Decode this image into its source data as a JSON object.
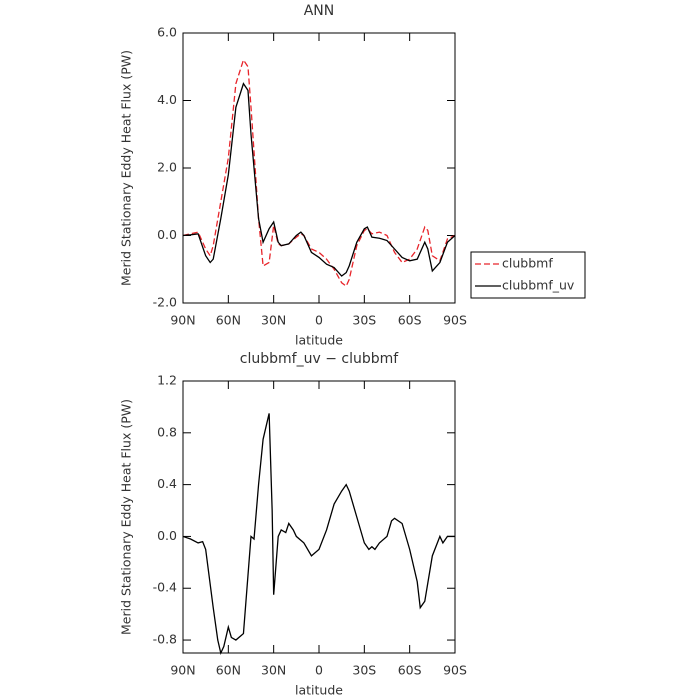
{
  "chart_data": [
    {
      "type": "line",
      "title": "ANN",
      "ylabel": "Merid Stationary Eddy Heat Flux (PW)",
      "xlabel": "latitude",
      "x": [
        90,
        85,
        80,
        75,
        72,
        70,
        65,
        60,
        55,
        50,
        47,
        45,
        40,
        37,
        33,
        30,
        27,
        25,
        20,
        15,
        12,
        10,
        5,
        0,
        -5,
        -10,
        -15,
        -18,
        -20,
        -25,
        -30,
        -32,
        -35,
        -40,
        -45,
        -50,
        -55,
        -60,
        -65,
        -70,
        -72,
        -75,
        -80,
        -85,
        -90
      ],
      "series": [
        {
          "name": "clubbmf",
          "color": "#e8242a",
          "dashed": true,
          "values": [
            0,
            0.05,
            0.1,
            -0.4,
            -0.6,
            -0.3,
            1.0,
            2.3,
            4.5,
            5.2,
            5.0,
            3.8,
            0.5,
            -0.9,
            -0.8,
            0.3,
            -0.25,
            -0.3,
            -0.25,
            -0.05,
            0.05,
            0.0,
            -0.4,
            -0.5,
            -0.7,
            -1.0,
            -1.4,
            -1.5,
            -1.3,
            -0.3,
            0.15,
            0.2,
            0.05,
            0.1,
            0.0,
            -0.5,
            -0.8,
            -0.7,
            -0.4,
            0.25,
            0.15,
            -0.6,
            -0.75,
            -0.1,
            0
          ]
        },
        {
          "name": "clubbmf_uv",
          "color": "#000000",
          "dashed": false,
          "values": [
            0,
            0.02,
            0.05,
            -0.6,
            -0.8,
            -0.7,
            0.5,
            1.8,
            3.8,
            4.5,
            4.3,
            3.0,
            0.5,
            -0.2,
            0.2,
            0.4,
            -0.2,
            -0.3,
            -0.25,
            0.0,
            0.1,
            0.0,
            -0.5,
            -0.65,
            -0.85,
            -0.95,
            -1.2,
            -1.1,
            -0.9,
            -0.2,
            0.2,
            0.25,
            -0.05,
            -0.08,
            -0.15,
            -0.4,
            -0.65,
            -0.75,
            -0.7,
            -0.2,
            -0.4,
            -1.05,
            -0.8,
            -0.2,
            0
          ]
        }
      ],
      "xlim": [
        90,
        -90
      ],
      "xticks": [
        {
          "value": 90,
          "label": "90N"
        },
        {
          "value": 60,
          "label": "60N"
        },
        {
          "value": 30,
          "label": "30N"
        },
        0,
        {
          "value": -30,
          "label": "30S"
        },
        {
          "value": -60,
          "label": "60S"
        },
        {
          "value": -90,
          "label": "90S"
        }
      ],
      "ylim": [
        -2,
        6
      ],
      "yticks": [
        {
          "value": -2,
          "label": "-2.0"
        },
        {
          "value": 0,
          "label": "0.0"
        },
        {
          "value": 2,
          "label": "2.0"
        },
        {
          "value": 4,
          "label": "4.0"
        },
        {
          "value": 6,
          "label": "6.0"
        }
      ],
      "legend": "right"
    },
    {
      "type": "line",
      "title": "clubbmf_uv − clubbmf",
      "ylabel": "Merid Stationary Eddy Heat Flux (PW)",
      "xlabel": "latitude",
      "x": [
        90,
        85,
        80,
        77,
        75,
        70,
        67,
        65,
        63,
        60,
        58,
        55,
        50,
        47,
        45,
        43,
        40,
        37,
        35,
        33,
        31,
        30,
        27,
        25,
        22,
        20,
        17,
        15,
        10,
        5,
        0,
        -5,
        -10,
        -15,
        -18,
        -20,
        -25,
        -30,
        -33,
        -35,
        -37,
        -40,
        -45,
        -48,
        -50,
        -55,
        -60,
        -65,
        -67,
        -70,
        -75,
        -80,
        -82,
        -85,
        -90
      ],
      "values": [
        0,
        -0.02,
        -0.05,
        -0.04,
        -0.1,
        -0.55,
        -0.8,
        -0.9,
        -0.85,
        -0.7,
        -0.78,
        -0.8,
        -0.75,
        -0.3,
        0.0,
        -0.02,
        0.4,
        0.75,
        0.85,
        0.95,
        0.2,
        -0.45,
        0.0,
        0.05,
        0.03,
        0.1,
        0.05,
        0.0,
        -0.05,
        -0.15,
        -0.1,
        0.05,
        0.25,
        0.35,
        0.4,
        0.35,
        0.15,
        -0.05,
        -0.1,
        -0.08,
        -0.1,
        -0.05,
        0.0,
        0.12,
        0.14,
        0.1,
        -0.1,
        -0.35,
        -0.55,
        -0.5,
        -0.15,
        0.0,
        -0.05,
        0.0,
        0
      ],
      "color": "#000000",
      "xlim": [
        90,
        -90
      ],
      "xticks": [
        {
          "value": 90,
          "label": "90N"
        },
        {
          "value": 60,
          "label": "60N"
        },
        {
          "value": 30,
          "label": "30N"
        },
        0,
        {
          "value": -30,
          "label": "30S"
        },
        {
          "value": -60,
          "label": "60S"
        },
        {
          "value": -90,
          "label": "90S"
        }
      ],
      "ylim": [
        -0.9,
        1.2
      ],
      "yticks": [
        -0.8,
        -0.4,
        {
          "value": 0,
          "label": "0.0"
        },
        0.4,
        0.8,
        1.2
      ]
    }
  ]
}
